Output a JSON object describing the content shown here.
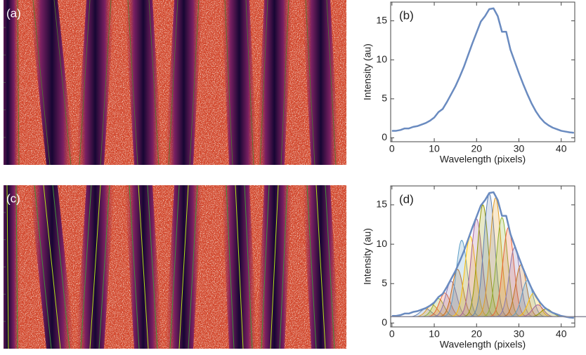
{
  "images": [
    {
      "label": "(a)"
    },
    {
      "label": "(c)",
      "fits": true
    }
  ],
  "chart_data": [
    {
      "type": "line",
      "label": "(b)",
      "xlabel": "Wavelength (pixels)",
      "ylabel": "Intensity (au)",
      "x": [
        0,
        1,
        2,
        3,
        4,
        5,
        6,
        7,
        8,
        9,
        10,
        11,
        12,
        13,
        14,
        15,
        16,
        17,
        18,
        19,
        20,
        21,
        22,
        23,
        24,
        25,
        26,
        27,
        28,
        29,
        30,
        31,
        32,
        33,
        34,
        35,
        36,
        37,
        38,
        39,
        40,
        41,
        42,
        43
      ],
      "values": [
        0.9,
        0.9,
        1.0,
        1.2,
        1.2,
        1.4,
        1.5,
        1.7,
        1.9,
        2.2,
        2.6,
        3.3,
        3.7,
        4.6,
        5.6,
        6.6,
        7.8,
        9.1,
        10.6,
        12.1,
        13.5,
        14.9,
        15.6,
        16.5,
        16.6,
        15.6,
        13.6,
        13.6,
        11.3,
        9.8,
        8.3,
        6.9,
        5.6,
        4.4,
        3.4,
        2.6,
        2.0,
        1.6,
        1.3,
        1.1,
        0.9,
        0.8,
        0.7,
        0.65
      ],
      "color": "#6a8bc0",
      "xlim": [
        -0.3,
        43.2
      ],
      "ylim": [
        -0.5,
        17.4
      ],
      "xticks": [
        0,
        10,
        20,
        30,
        40
      ],
      "yticks": [
        0,
        5,
        10,
        15
      ]
    },
    {
      "type": "line",
      "label": "(d)",
      "xlabel": "Wavelength (pixels)",
      "ylabel": "Intensity (au)",
      "x": [
        0,
        1,
        2,
        3,
        4,
        5,
        6,
        7,
        8,
        9,
        10,
        11,
        12,
        13,
        14,
        15,
        16,
        17,
        18,
        19,
        20,
        21,
        22,
        23,
        24,
        25,
        26,
        27,
        28,
        29,
        30,
        31,
        32,
        33,
        34,
        35,
        36,
        37,
        38,
        39,
        40,
        41,
        42,
        43
      ],
      "values": [
        0.9,
        0.9,
        1.0,
        1.2,
        1.2,
        1.4,
        1.5,
        1.7,
        1.9,
        2.2,
        2.6,
        3.3,
        3.7,
        4.6,
        5.6,
        6.6,
        7.8,
        9.1,
        10.6,
        12.1,
        13.5,
        14.9,
        15.6,
        16.5,
        16.6,
        15.6,
        13.6,
        13.6,
        11.3,
        9.8,
        8.3,
        6.9,
        5.6,
        4.4,
        3.4,
        2.6,
        2.0,
        1.6,
        1.3,
        1.1,
        0.9,
        0.8,
        0.7,
        0.65
      ],
      "color": "#6a8bc0",
      "baseline": 0.8,
      "peak_sigma": 1.3,
      "peaks": [
        {
          "center": 8,
          "amplitude": 1.0,
          "color": "#5e81b5"
        },
        {
          "center": 9.5,
          "amplitude": 1.5,
          "color": "#e19c24"
        },
        {
          "center": 11,
          "amplitude": 2.3,
          "color": "#8fb032"
        },
        {
          "center": 12.5,
          "amplitude": 3.0,
          "color": "#eb6235"
        },
        {
          "center": 14,
          "amplitude": 4.5,
          "color": "#8778b3"
        },
        {
          "center": 15.5,
          "amplitude": 6.0,
          "color": "#c56e1a"
        },
        {
          "center": 16.5,
          "amplitude": 9.7,
          "color": "#5d9ec7"
        },
        {
          "center": 18.5,
          "amplitude": 10.2,
          "color": "#ffbf00"
        },
        {
          "center": 20,
          "amplitude": 12.4,
          "color": "#a5609d"
        },
        {
          "center": 21.5,
          "amplitude": 14.2,
          "color": "#929600"
        },
        {
          "center": 23,
          "amplitude": 15.6,
          "color": "#5e81b5"
        },
        {
          "center": 24.5,
          "amplitude": 15.1,
          "color": "#e19c24"
        },
        {
          "center": 26,
          "amplitude": 12.6,
          "color": "#8fb032"
        },
        {
          "center": 27.5,
          "amplitude": 11.3,
          "color": "#eb6235"
        },
        {
          "center": 29,
          "amplitude": 8.8,
          "color": "#8778b3"
        },
        {
          "center": 30.5,
          "amplitude": 6.6,
          "color": "#c56e1a"
        },
        {
          "center": 32,
          "amplitude": 4.6,
          "color": "#5d9ec7"
        },
        {
          "center": 33.5,
          "amplitude": 3.0,
          "color": "#ffbf00"
        },
        {
          "center": 34.5,
          "amplitude": 1.5,
          "color": "#a5609d"
        },
        {
          "center": 36.5,
          "amplitude": 1.0,
          "color": "#929600"
        }
      ],
      "xlim": [
        -0.3,
        43.2
      ],
      "ylim": [
        -0.5,
        17.4
      ],
      "xticks": [
        0,
        10,
        20,
        30,
        40
      ],
      "yticks": [
        0,
        5,
        10,
        15
      ]
    }
  ]
}
